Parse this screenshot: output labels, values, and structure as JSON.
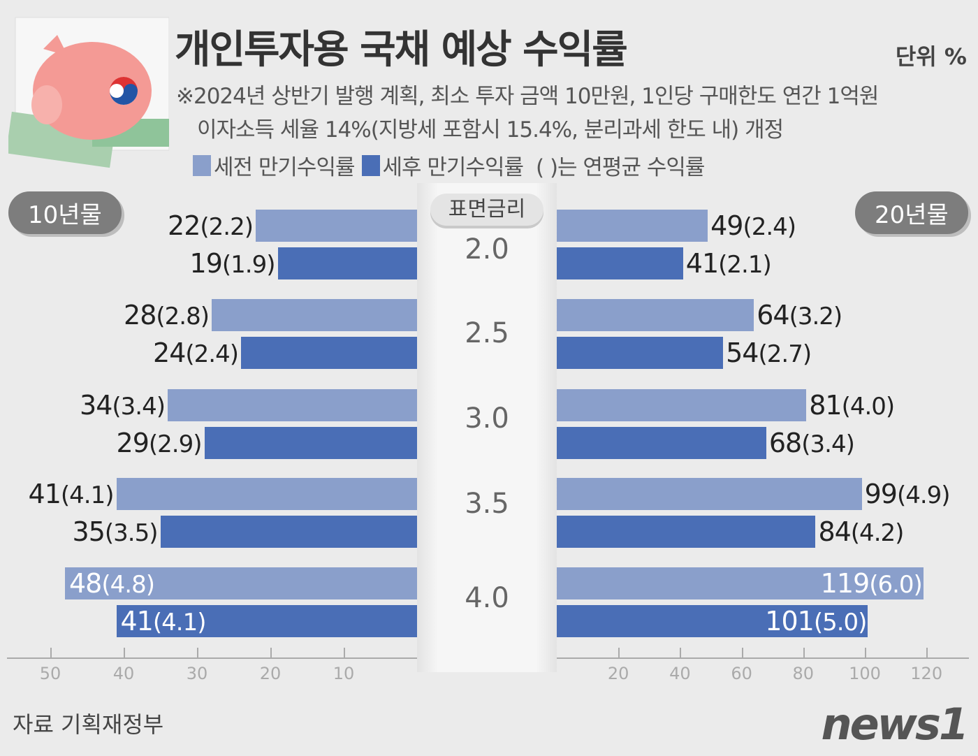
{
  "header": {
    "title": "개인투자용 국채 예상 수익률",
    "unit": "단위 %",
    "note1": "※2024년 상반기 발행 계획, 최소 투자 금액 10만원, 1인당 구매한도 연간 1억원",
    "note2": "이자소득 세율 14%(지방세 포함시 15.4%, 분리과세 한도 내) 개정"
  },
  "footer": {
    "source": "자료 기획재정부",
    "logo": "news1"
  },
  "colors": {
    "pre_tax": "#8a9fcb",
    "post_tax": "#4a6eb6",
    "background": "#ebebeb"
  },
  "chart_data": {
    "type": "bar",
    "orientation": "horizontal-butterfly",
    "legend": [
      "세전 만기수익률",
      "세후 만기수익률"
    ],
    "legend_note": "( )는 연평균 수익률",
    "center_header": "표면금리",
    "categories": [
      "2.0",
      "2.5",
      "3.0",
      "3.5",
      "4.0"
    ],
    "panels": [
      {
        "label": "10년물",
        "side": "left",
        "xlim": [
          0,
          50
        ],
        "ticks": [
          50,
          40,
          30,
          20,
          10
        ],
        "series": [
          {
            "name": "세전 만기수익률",
            "values": [
              22,
              28,
              34,
              41,
              48
            ],
            "annual": [
              "2.2",
              "2.8",
              "3.4",
              "4.1",
              "4.8"
            ]
          },
          {
            "name": "세후 만기수익률",
            "values": [
              19,
              24,
              29,
              35,
              41
            ],
            "annual": [
              "1.9",
              "2.4",
              "2.9",
              "3.5",
              "4.1"
            ]
          }
        ]
      },
      {
        "label": "20년물",
        "side": "right",
        "xlim": [
          0,
          120
        ],
        "ticks": [
          20,
          40,
          60,
          80,
          100,
          120
        ],
        "series": [
          {
            "name": "세전 만기수익률",
            "values": [
              49,
              64,
              81,
              99,
              119
            ],
            "annual": [
              "2.4",
              "3.2",
              "4.0",
              "4.9",
              "6.0"
            ]
          },
          {
            "name": "세후 만기수익률",
            "values": [
              41,
              54,
              68,
              84,
              101
            ],
            "annual": [
              "2.1",
              "2.7",
              "3.4",
              "4.2",
              "5.0"
            ]
          }
        ]
      }
    ]
  }
}
